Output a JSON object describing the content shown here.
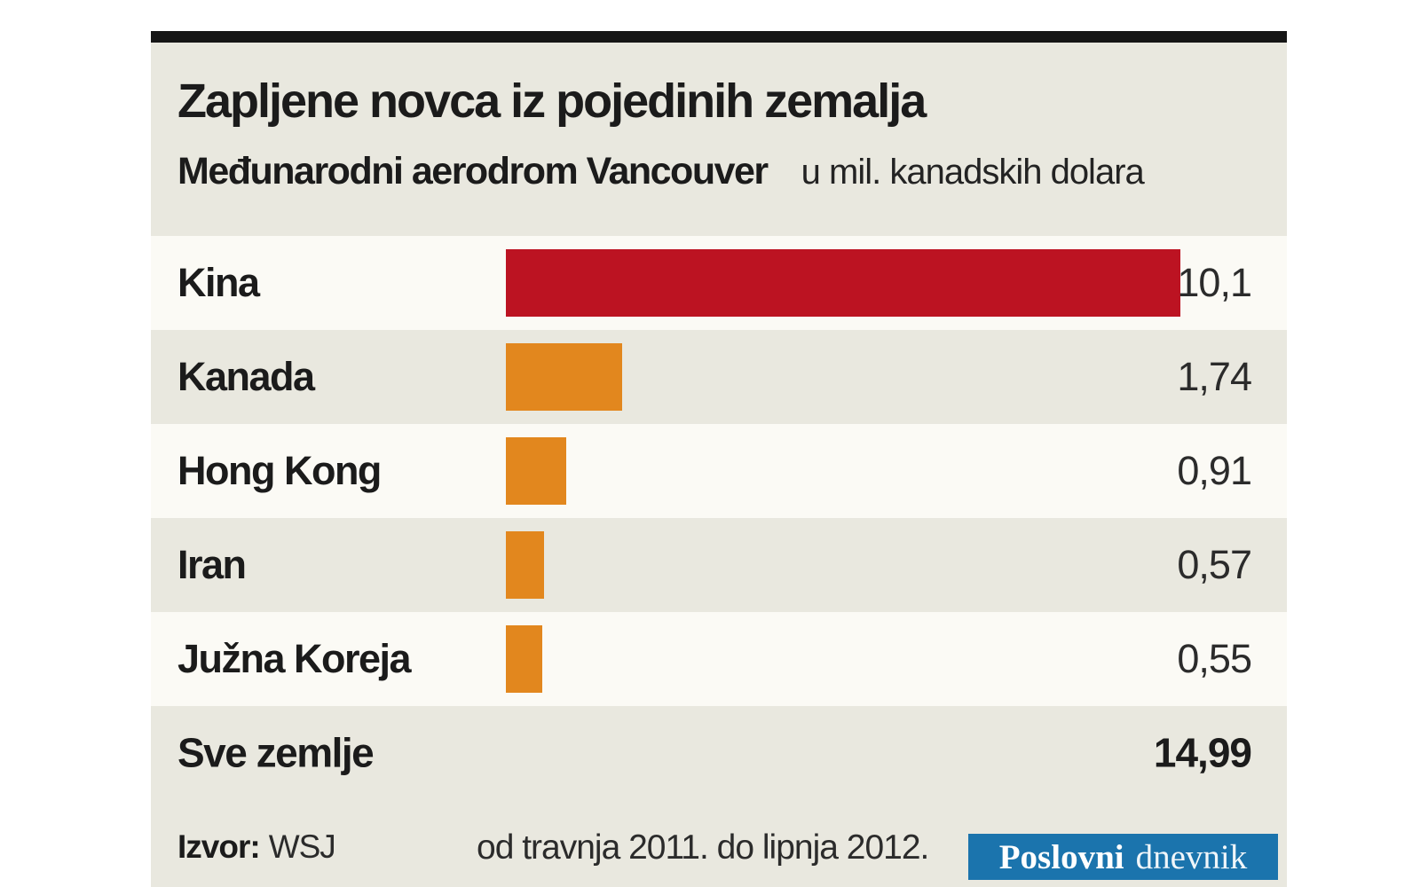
{
  "header": {
    "title": "Zapljene novca iz pojedinih zemalja",
    "subtitle": "Međunarodni aerodrom Vancouver",
    "unit_label": "u mil. kanadskih dolara"
  },
  "chart_data": {
    "type": "bar",
    "orientation": "horizontal",
    "title": "Zapljene novca iz pojedinih zemalja",
    "subtitle": "Međunarodni aerodrom Vancouver",
    "unit": "u mil. kanadskih dolara",
    "categories": [
      "Kina",
      "Kanada",
      "Hong Kong",
      "Iran",
      "Južna Koreja"
    ],
    "values": [
      10.1,
      1.74,
      0.91,
      0.57,
      0.55
    ],
    "value_labels": [
      "10,1",
      "1,74",
      "0,91",
      "0,57",
      "0,55"
    ],
    "bar_colors": [
      "#bc1322",
      "#e2871e",
      "#e2871e",
      "#e2871e",
      "#e2871e"
    ],
    "xlim": [
      0,
      10.1
    ],
    "grid": false,
    "legend": false,
    "total": {
      "label": "Sve zemlje",
      "value": 14.99,
      "value_label": "14,99"
    }
  },
  "footer": {
    "source_label": "Izvor:",
    "source_value": "WSJ",
    "period": "od travnja 2011. do lipnja 2012.",
    "brand": {
      "word1": "Poslovni",
      "word2": "dnevnik",
      "bg": "#1b74ad"
    }
  },
  "colors": {
    "top_rule": "#161616",
    "row_light": "#fbfaf5",
    "row_beige": "#e9e8df",
    "bar_red": "#bc1322",
    "bar_orange": "#e2871e",
    "brand_blue": "#1b74ad",
    "text": "#1b1b1b"
  }
}
